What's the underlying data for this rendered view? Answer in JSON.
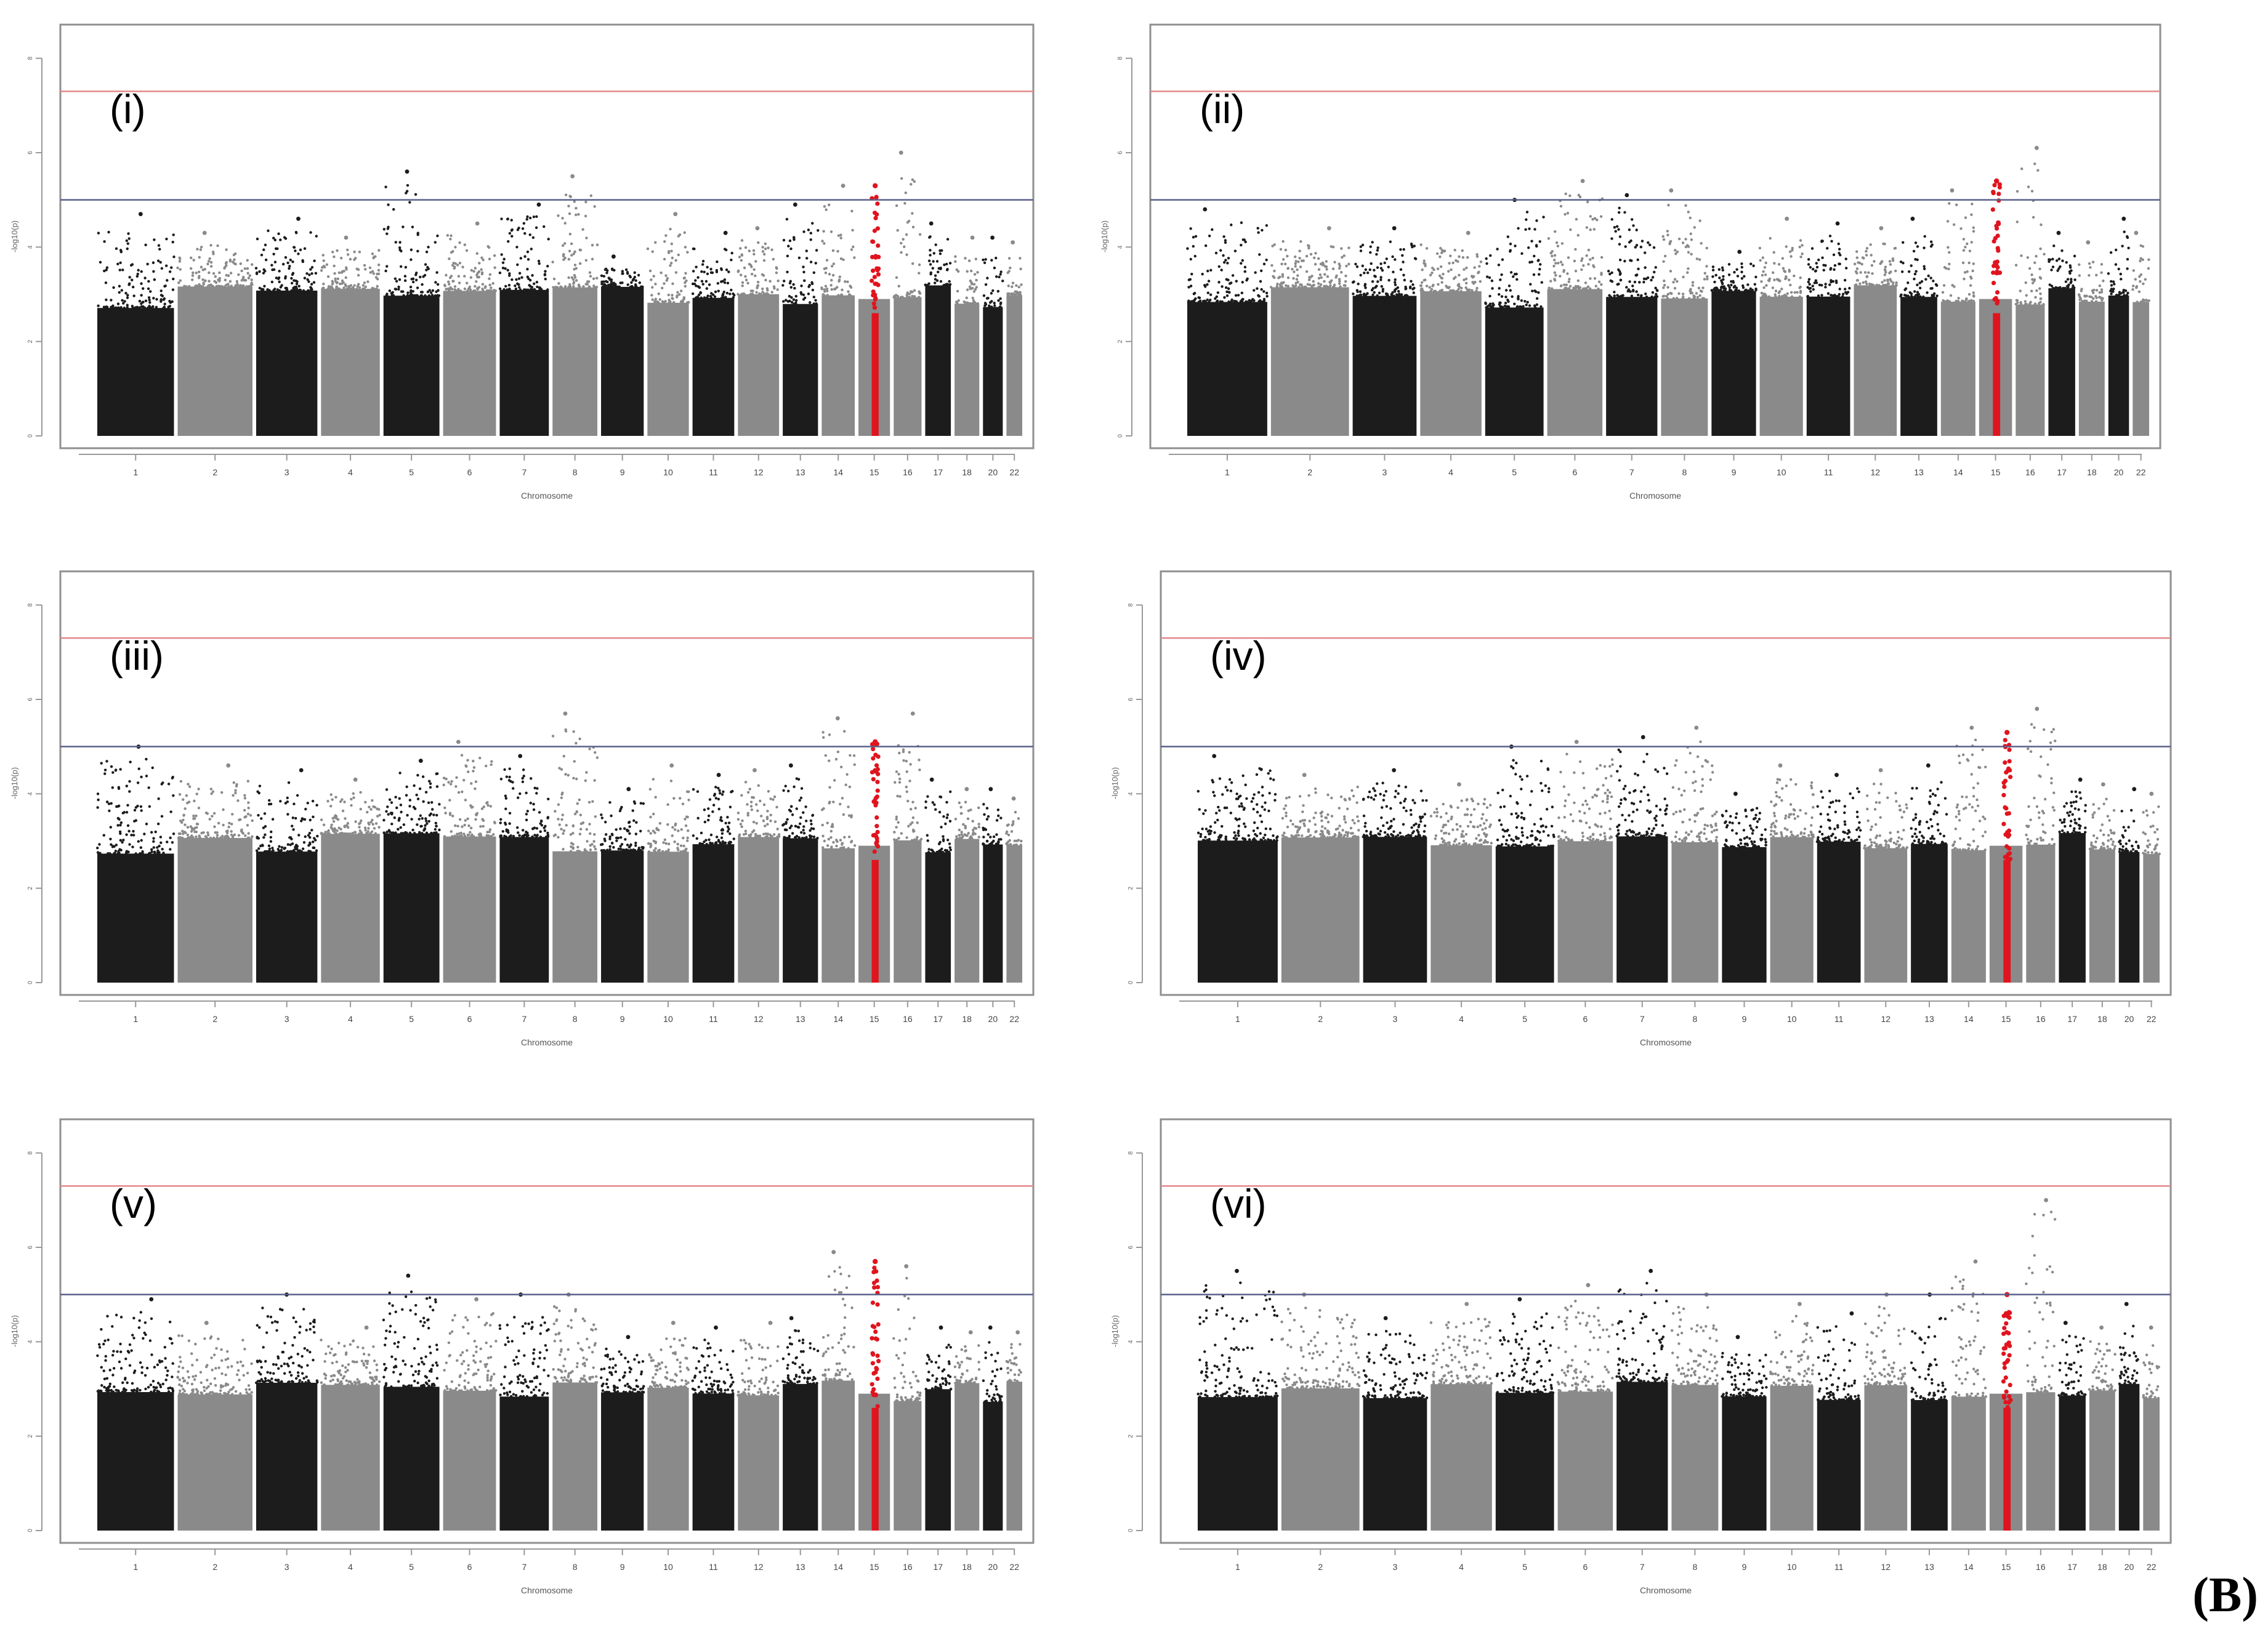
{
  "figure_label": "(B)",
  "colors": {
    "dark": "#1c1c1c",
    "light": "#8a8a8a",
    "highlight": "#e0141e",
    "genome_line": "#e28a8a",
    "suggestive_line": "#5a5f8a",
    "frame": "#8f8f8f"
  },
  "chart_data": [
    {
      "type": "scatter",
      "subtype": "manhattan",
      "panel_label": "(i)",
      "xlabel": "Chromosome",
      "ylabel": "-log10(p)",
      "yticks": [
        0,
        2,
        4,
        6,
        8
      ],
      "ylim": [
        0,
        8.4
      ],
      "genome_wide_line": 7.3,
      "suggestive_line": 5.0,
      "highlight_chromosome": "15",
      "chromosomes": [
        "1",
        "2",
        "3",
        "4",
        "5",
        "6",
        "7",
        "8",
        "9",
        "10",
        "11",
        "12",
        "13",
        "14",
        "15",
        "16",
        "17",
        "18",
        "20",
        "22"
      ],
      "chromosome_sizes": [
        248,
        242,
        198,
        190,
        181,
        171,
        159,
        145,
        138,
        134,
        135,
        133,
        114,
        107,
        102,
        90,
        83,
        80,
        64,
        51
      ],
      "peak_values": [
        4.7,
        4.3,
        4.6,
        4.2,
        5.6,
        4.5,
        4.9,
        5.5,
        3.8,
        4.7,
        4.3,
        4.4,
        4.9,
        5.3,
        5.3,
        6.0,
        4.5,
        4.2,
        4.2,
        4.1
      ]
    },
    {
      "type": "scatter",
      "subtype": "manhattan",
      "panel_label": "(ii)",
      "xlabel": "Chromosome",
      "ylabel": "-log10(p)",
      "yticks": [
        0,
        2,
        4,
        6,
        8
      ],
      "ylim": [
        0,
        8.4
      ],
      "genome_wide_line": 7.3,
      "suggestive_line": 5.0,
      "highlight_chromosome": "15",
      "chromosomes": [
        "1",
        "2",
        "3",
        "4",
        "5",
        "6",
        "7",
        "8",
        "9",
        "10",
        "11",
        "12",
        "13",
        "14",
        "15",
        "16",
        "17",
        "18",
        "20",
        "22"
      ],
      "chromosome_sizes": [
        248,
        242,
        198,
        190,
        181,
        171,
        159,
        145,
        138,
        134,
        135,
        133,
        114,
        107,
        102,
        90,
        83,
        80,
        64,
        51
      ],
      "peak_values": [
        4.8,
        4.4,
        4.4,
        4.3,
        5.0,
        5.4,
        5.1,
        5.2,
        3.9,
        4.6,
        4.5,
        4.4,
        4.6,
        5.2,
        5.4,
        6.1,
        4.3,
        4.1,
        4.6,
        4.3
      ]
    },
    {
      "type": "scatter",
      "subtype": "manhattan",
      "panel_label": "(iii)",
      "xlabel": "Chromosome",
      "ylabel": "-log10(p)",
      "yticks": [
        0,
        2,
        4,
        6,
        8
      ],
      "ylim": [
        0,
        8.4
      ],
      "genome_wide_line": 7.3,
      "suggestive_line": 5.0,
      "highlight_chromosome": "15",
      "chromosomes": [
        "1",
        "2",
        "3",
        "4",
        "5",
        "6",
        "7",
        "8",
        "9",
        "10",
        "11",
        "12",
        "13",
        "14",
        "15",
        "16",
        "17",
        "18",
        "20",
        "22"
      ],
      "chromosome_sizes": [
        248,
        242,
        198,
        190,
        181,
        171,
        159,
        145,
        138,
        134,
        135,
        133,
        114,
        107,
        102,
        90,
        83,
        80,
        64,
        51
      ],
      "peak_values": [
        5.0,
        4.6,
        4.5,
        4.3,
        4.7,
        5.1,
        4.8,
        5.7,
        4.1,
        4.6,
        4.4,
        4.5,
        4.6,
        5.6,
        5.1,
        5.7,
        4.3,
        4.1,
        4.1,
        3.9
      ]
    },
    {
      "type": "scatter",
      "subtype": "manhattan",
      "panel_label": "(iv)",
      "xlabel": "Chromosome",
      "ylabel": "-log10(p)",
      "yticks": [
        0,
        2,
        4,
        6,
        8
      ],
      "ylim": [
        0,
        8.4
      ],
      "genome_wide_line": 7.3,
      "suggestive_line": 5.0,
      "highlight_chromosome": "15",
      "chromosomes": [
        "1",
        "2",
        "3",
        "4",
        "5",
        "6",
        "7",
        "8",
        "9",
        "10",
        "11",
        "12",
        "13",
        "14",
        "15",
        "16",
        "17",
        "18",
        "20",
        "22"
      ],
      "chromosome_sizes": [
        248,
        242,
        198,
        190,
        181,
        171,
        159,
        145,
        138,
        134,
        135,
        133,
        114,
        107,
        102,
        90,
        83,
        80,
        64,
        51
      ],
      "peak_values": [
        4.8,
        4.4,
        4.5,
        4.2,
        5.0,
        5.1,
        5.2,
        5.4,
        4.0,
        4.6,
        4.4,
        4.5,
        4.6,
        5.4,
        5.3,
        5.8,
        4.3,
        4.2,
        4.1,
        4.0
      ]
    },
    {
      "type": "scatter",
      "subtype": "manhattan",
      "panel_label": "(v)",
      "xlabel": "Chromosome",
      "ylabel": "-log10(p)",
      "yticks": [
        0,
        2,
        4,
        6,
        8
      ],
      "ylim": [
        0,
        8.4
      ],
      "genome_wide_line": 7.3,
      "suggestive_line": 5.0,
      "highlight_chromosome": "15",
      "chromosomes": [
        "1",
        "2",
        "3",
        "4",
        "5",
        "6",
        "7",
        "8",
        "9",
        "10",
        "11",
        "12",
        "13",
        "14",
        "15",
        "16",
        "17",
        "18",
        "20",
        "22"
      ],
      "chromosome_sizes": [
        248,
        242,
        198,
        190,
        181,
        171,
        159,
        145,
        138,
        134,
        135,
        133,
        114,
        107,
        102,
        90,
        83,
        80,
        64,
        51
      ],
      "peak_values": [
        4.9,
        4.4,
        5.0,
        4.3,
        5.4,
        4.9,
        5.0,
        5.0,
        4.1,
        4.4,
        4.3,
        4.4,
        4.5,
        5.9,
        5.7,
        5.6,
        4.3,
        4.2,
        4.3,
        4.2
      ]
    },
    {
      "type": "scatter",
      "subtype": "manhattan",
      "panel_label": "(vi)",
      "xlabel": "Chromosome",
      "ylabel": "-log10(p)",
      "yticks": [
        0,
        2,
        4,
        6,
        8
      ],
      "ylim": [
        0,
        8.4
      ],
      "genome_wide_line": 7.3,
      "suggestive_line": 5.0,
      "highlight_chromosome": "15",
      "chromosomes": [
        "1",
        "2",
        "3",
        "4",
        "5",
        "6",
        "7",
        "8",
        "9",
        "10",
        "11",
        "12",
        "13",
        "14",
        "15",
        "16",
        "17",
        "18",
        "20",
        "22"
      ],
      "chromosome_sizes": [
        248,
        242,
        198,
        190,
        181,
        171,
        159,
        145,
        138,
        134,
        135,
        133,
        114,
        107,
        102,
        90,
        83,
        80,
        64,
        51
      ],
      "peak_values": [
        5.5,
        5.0,
        4.5,
        4.8,
        4.9,
        5.2,
        5.5,
        5.0,
        4.1,
        4.8,
        4.6,
        5.0,
        5.0,
        5.7,
        5.0,
        7.0,
        4.4,
        4.3,
        4.8,
        4.3
      ]
    }
  ]
}
